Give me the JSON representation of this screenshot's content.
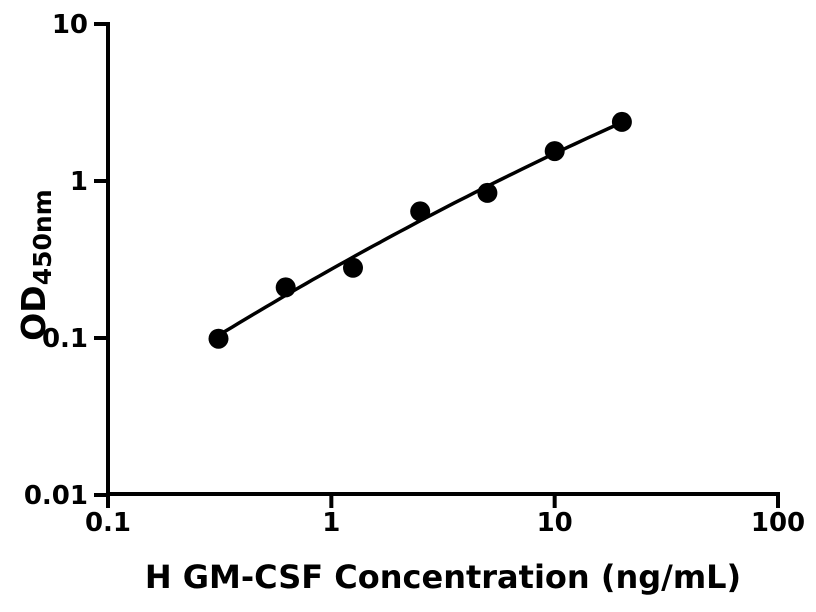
{
  "figure": {
    "background": "#ffffff",
    "axis_color": "#000000"
  },
  "chart_data": {
    "type": "scatter",
    "title": "",
    "xlabel": "H GM-CSF Concentration (ng/mL)",
    "ylabel_base": "OD",
    "ylabel_subscript": "450nm",
    "xscale": "log",
    "yscale": "log",
    "xlim": [
      0.1,
      100
    ],
    "ylim": [
      0.01,
      10
    ],
    "grid": false,
    "legend_position": "none",
    "x_tick_labels": [
      "0.1",
      "1",
      "10",
      "100"
    ],
    "x_tick_values": [
      0.1,
      1,
      10,
      100
    ],
    "y_tick_labels": [
      "10",
      "1",
      "0.1",
      "0.01"
    ],
    "y_tick_values": [
      10,
      1,
      0.1,
      0.01
    ],
    "series": [
      {
        "name": "standard-points",
        "type": "scatter",
        "marker": "circle",
        "color": "#000000",
        "x": [
          0.3125,
          0.625,
          1.25,
          2.5,
          5,
          10,
          20
        ],
        "y": [
          0.099,
          0.21,
          0.28,
          0.64,
          0.84,
          1.55,
          2.38
        ]
      },
      {
        "name": "fitted-curve",
        "type": "line",
        "color": "#000000",
        "fit": {
          "kind": "quadratic_in_loglog",
          "u0": 0.398,
          "a": -0.2531,
          "b": 0.7505,
          "c": -0.0638,
          "x_start": 0.3125,
          "x_end": 20
        }
      }
    ]
  }
}
